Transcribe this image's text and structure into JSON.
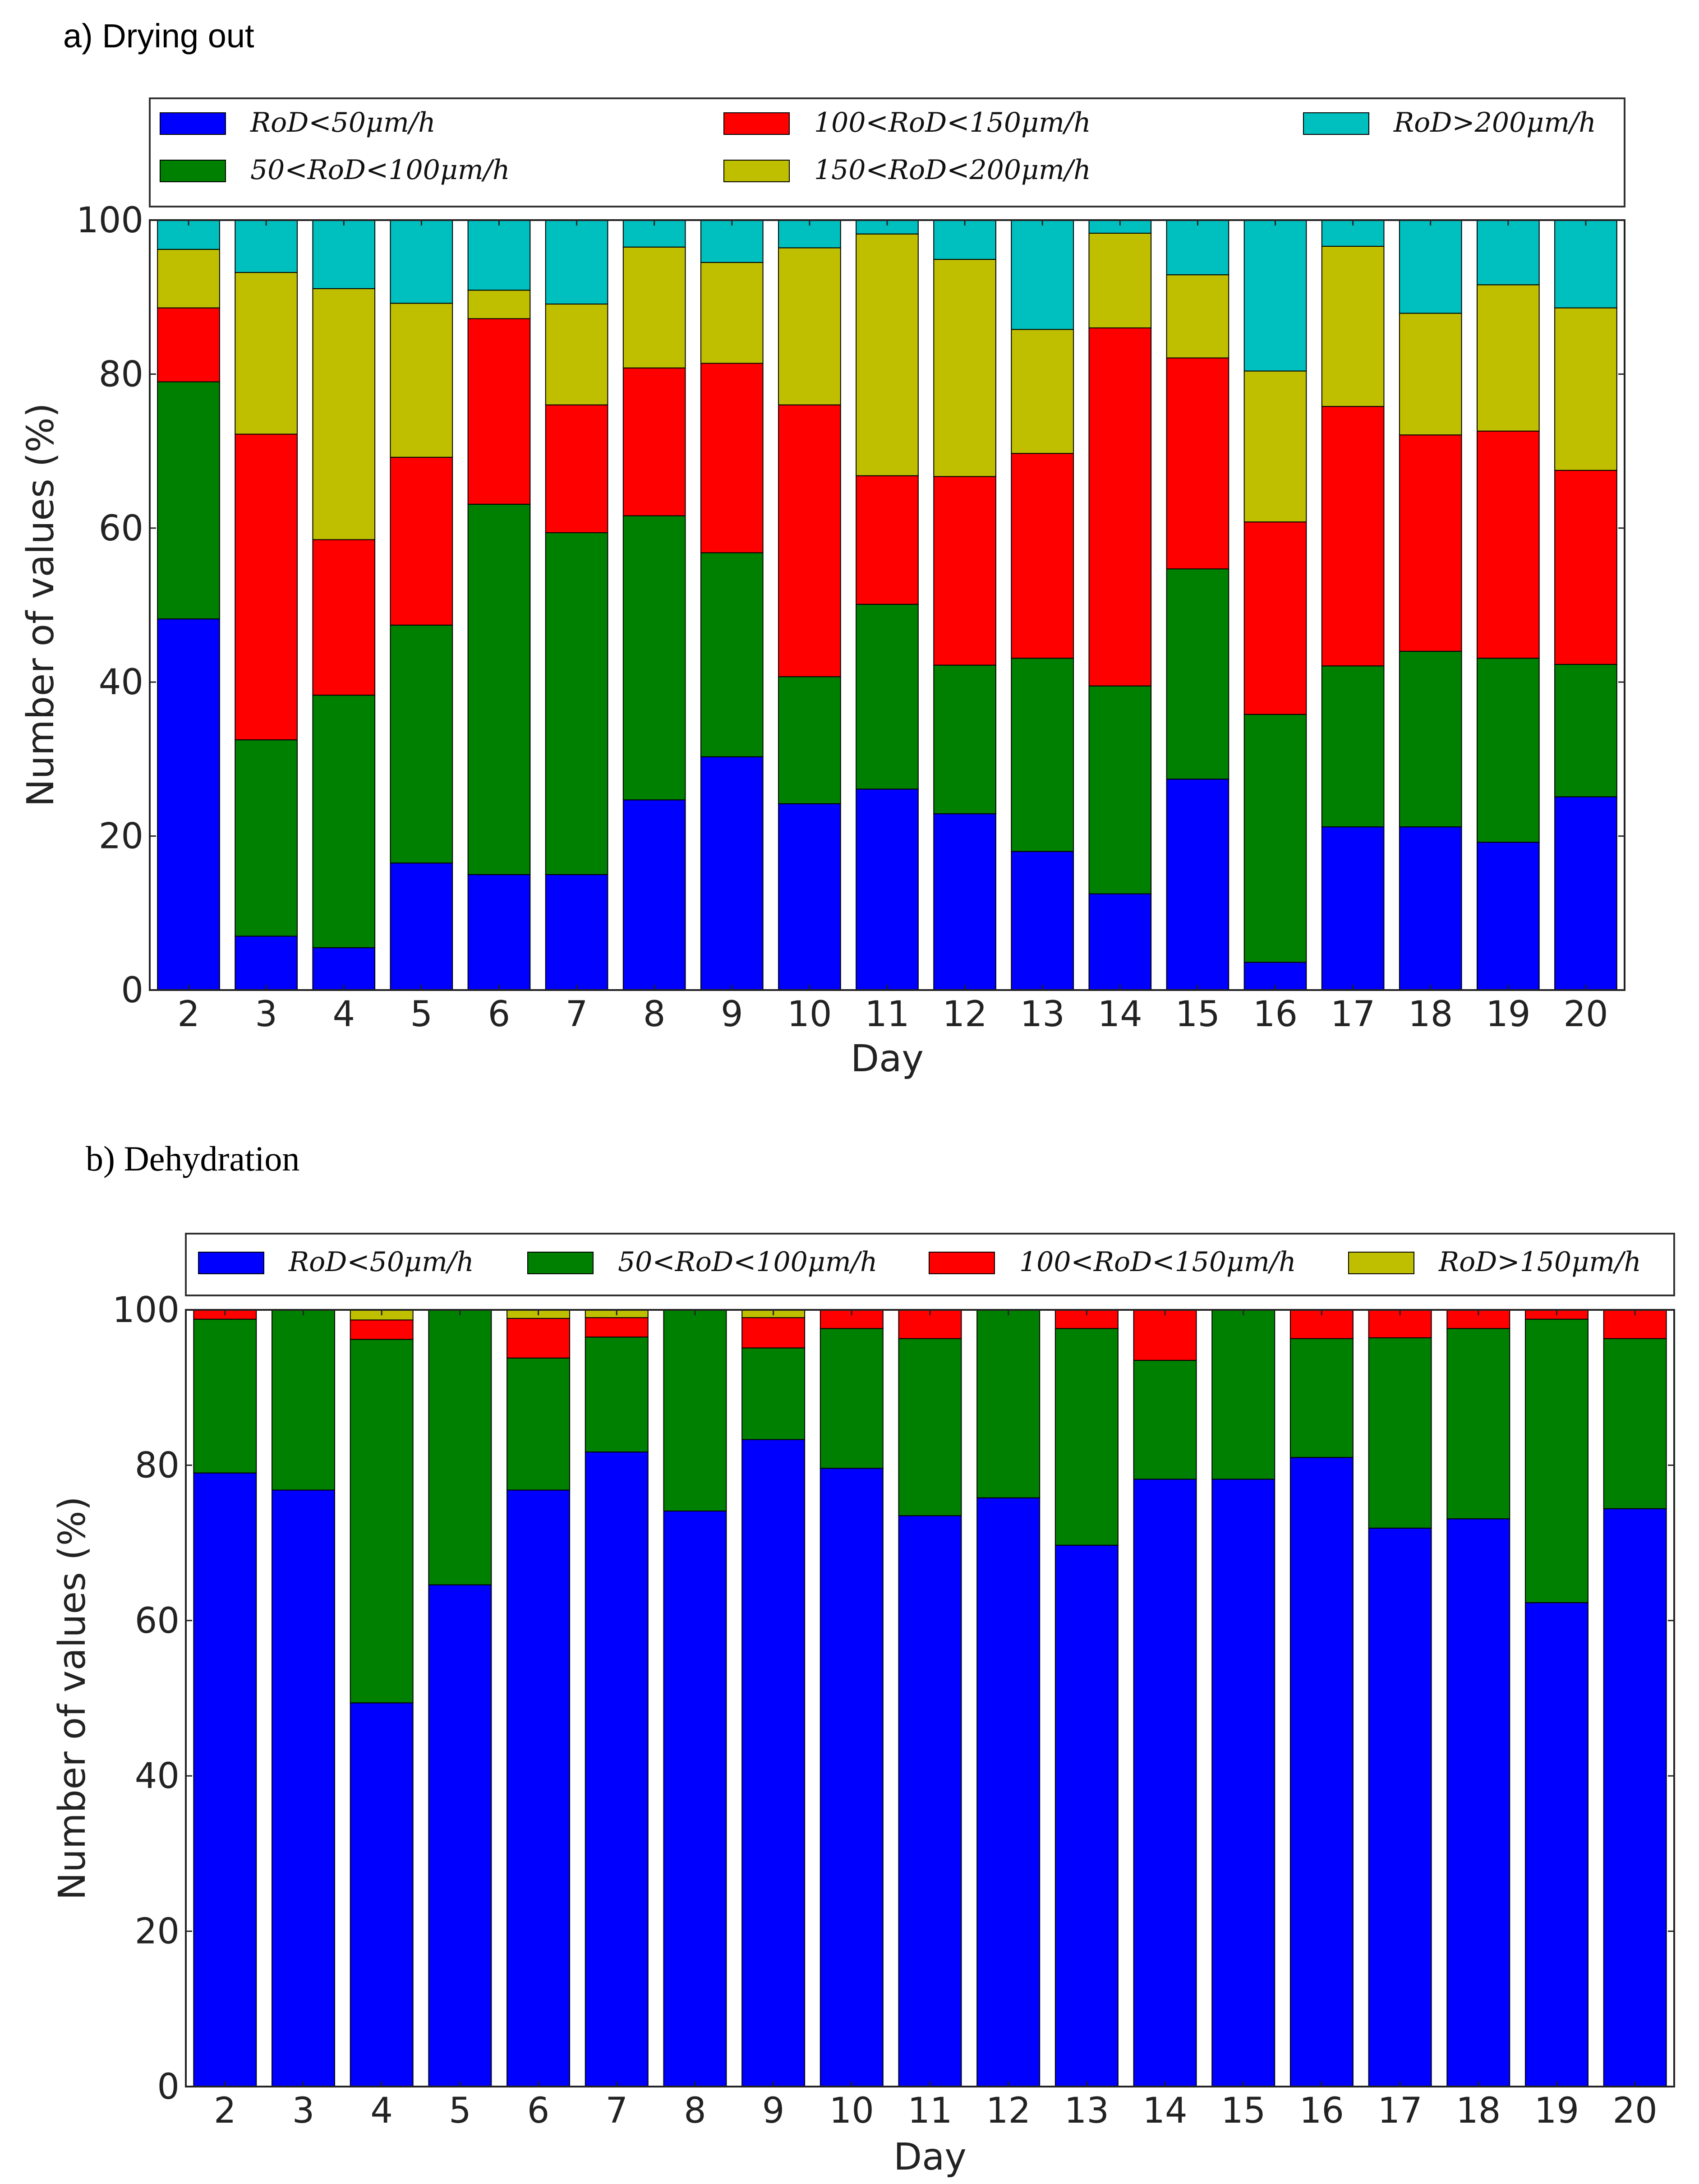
{
  "colors": {
    "blue": "#0000ff",
    "green": "#008000",
    "red": "#ff0000",
    "olive": "#bfbf00",
    "cyan": "#00bfbf"
  },
  "chart_data": [
    {
      "type": "bar",
      "stacked": true,
      "title": "a)   Drying out",
      "xlabel": "Day",
      "ylabel": "Number of values (%)",
      "ylim": [
        0,
        100
      ],
      "yticks": [
        "0",
        "20",
        "40",
        "60",
        "80",
        "100"
      ],
      "categories": [
        "2",
        "3",
        "4",
        "5",
        "6",
        "7",
        "8",
        "9",
        "10",
        "11",
        "12",
        "13",
        "14",
        "15",
        "16",
        "17",
        "18",
        "19",
        "20"
      ],
      "legend_position": "top",
      "series": [
        {
          "name": "RoD<50μm/h",
          "color": "blue",
          "values": [
            48.2,
            7.0,
            5.5,
            16.5,
            15.0,
            15.0,
            24.7,
            30.3,
            24.2,
            26.1,
            22.9,
            18.0,
            12.5,
            27.4,
            3.6,
            21.2,
            21.2,
            19.2,
            25.1
          ]
        },
        {
          "name": "50<RoD<100μm/h",
          "color": "green",
          "values": [
            30.8,
            25.5,
            32.8,
            30.9,
            48.1,
            44.4,
            36.9,
            26.5,
            16.5,
            24.0,
            19.3,
            25.1,
            27.0,
            27.3,
            32.2,
            20.9,
            22.8,
            23.9,
            17.2
          ]
        },
        {
          "name": "100<RoD<150μm/h",
          "color": "red",
          "values": [
            9.6,
            39.7,
            20.2,
            21.8,
            24.1,
            16.6,
            19.2,
            24.6,
            35.3,
            16.7,
            24.5,
            26.6,
            46.5,
            27.4,
            25.0,
            33.7,
            28.1,
            29.5,
            25.2
          ]
        },
        {
          "name": "150<RoD<200μm/h",
          "color": "olive",
          "values": [
            7.6,
            21.0,
            32.6,
            20.0,
            3.7,
            13.1,
            15.7,
            13.1,
            20.4,
            31.4,
            28.2,
            16.1,
            12.3,
            10.8,
            19.6,
            20.8,
            15.8,
            19.0,
            21.1
          ]
        },
        {
          "name": "RoD>200μm/h",
          "color": "cyan",
          "values": [
            3.8,
            6.8,
            8.9,
            10.8,
            9.1,
            10.9,
            3.5,
            5.5,
            3.6,
            1.8,
            5.1,
            14.2,
            1.7,
            7.1,
            19.6,
            3.4,
            12.1,
            8.4,
            11.4
          ]
        }
      ]
    },
    {
      "type": "bar",
      "stacked": true,
      "title": "b) Dehydration",
      "xlabel": "Day",
      "ylabel": "Number of values (%)",
      "ylim": [
        0,
        100
      ],
      "yticks": [
        "0",
        "20",
        "40",
        "60",
        "80",
        "100"
      ],
      "categories": [
        "2",
        "3",
        "4",
        "5",
        "6",
        "7",
        "8",
        "9",
        "10",
        "11",
        "12",
        "13",
        "14",
        "15",
        "16",
        "17",
        "18",
        "19",
        "20"
      ],
      "legend_position": "top",
      "series": [
        {
          "name": "RoD<50μm/h",
          "color": "blue",
          "values": [
            79.0,
            76.8,
            49.4,
            64.6,
            76.8,
            81.7,
            74.1,
            83.3,
            79.6,
            73.5,
            75.8,
            69.7,
            78.2,
            78.2,
            81.0,
            71.9,
            73.1,
            62.3,
            74.4
          ]
        },
        {
          "name": "50<RoD<100μm/h",
          "color": "green",
          "values": [
            19.8,
            23.2,
            46.8,
            35.4,
            17.0,
            14.8,
            25.9,
            11.8,
            18.0,
            22.8,
            24.2,
            27.9,
            15.3,
            21.8,
            15.3,
            24.5,
            24.5,
            36.5,
            21.9
          ]
        },
        {
          "name": "100<RoD<150μm/h",
          "color": "red",
          "values": [
            1.2,
            0.0,
            2.5,
            0.0,
            5.1,
            2.5,
            0.0,
            3.9,
            2.4,
            3.7,
            0.0,
            2.4,
            6.5,
            0.0,
            3.7,
            3.6,
            2.4,
            1.2,
            3.7
          ]
        },
        {
          "name": "RoD>150μm/h",
          "color": "olive",
          "values": [
            0.0,
            0.0,
            1.3,
            0.0,
            1.1,
            1.0,
            0.0,
            1.0,
            0.0,
            0.0,
            0.0,
            0.0,
            0.0,
            0.0,
            0.0,
            0.0,
            0.0,
            0.0,
            0.0
          ]
        }
      ]
    }
  ]
}
